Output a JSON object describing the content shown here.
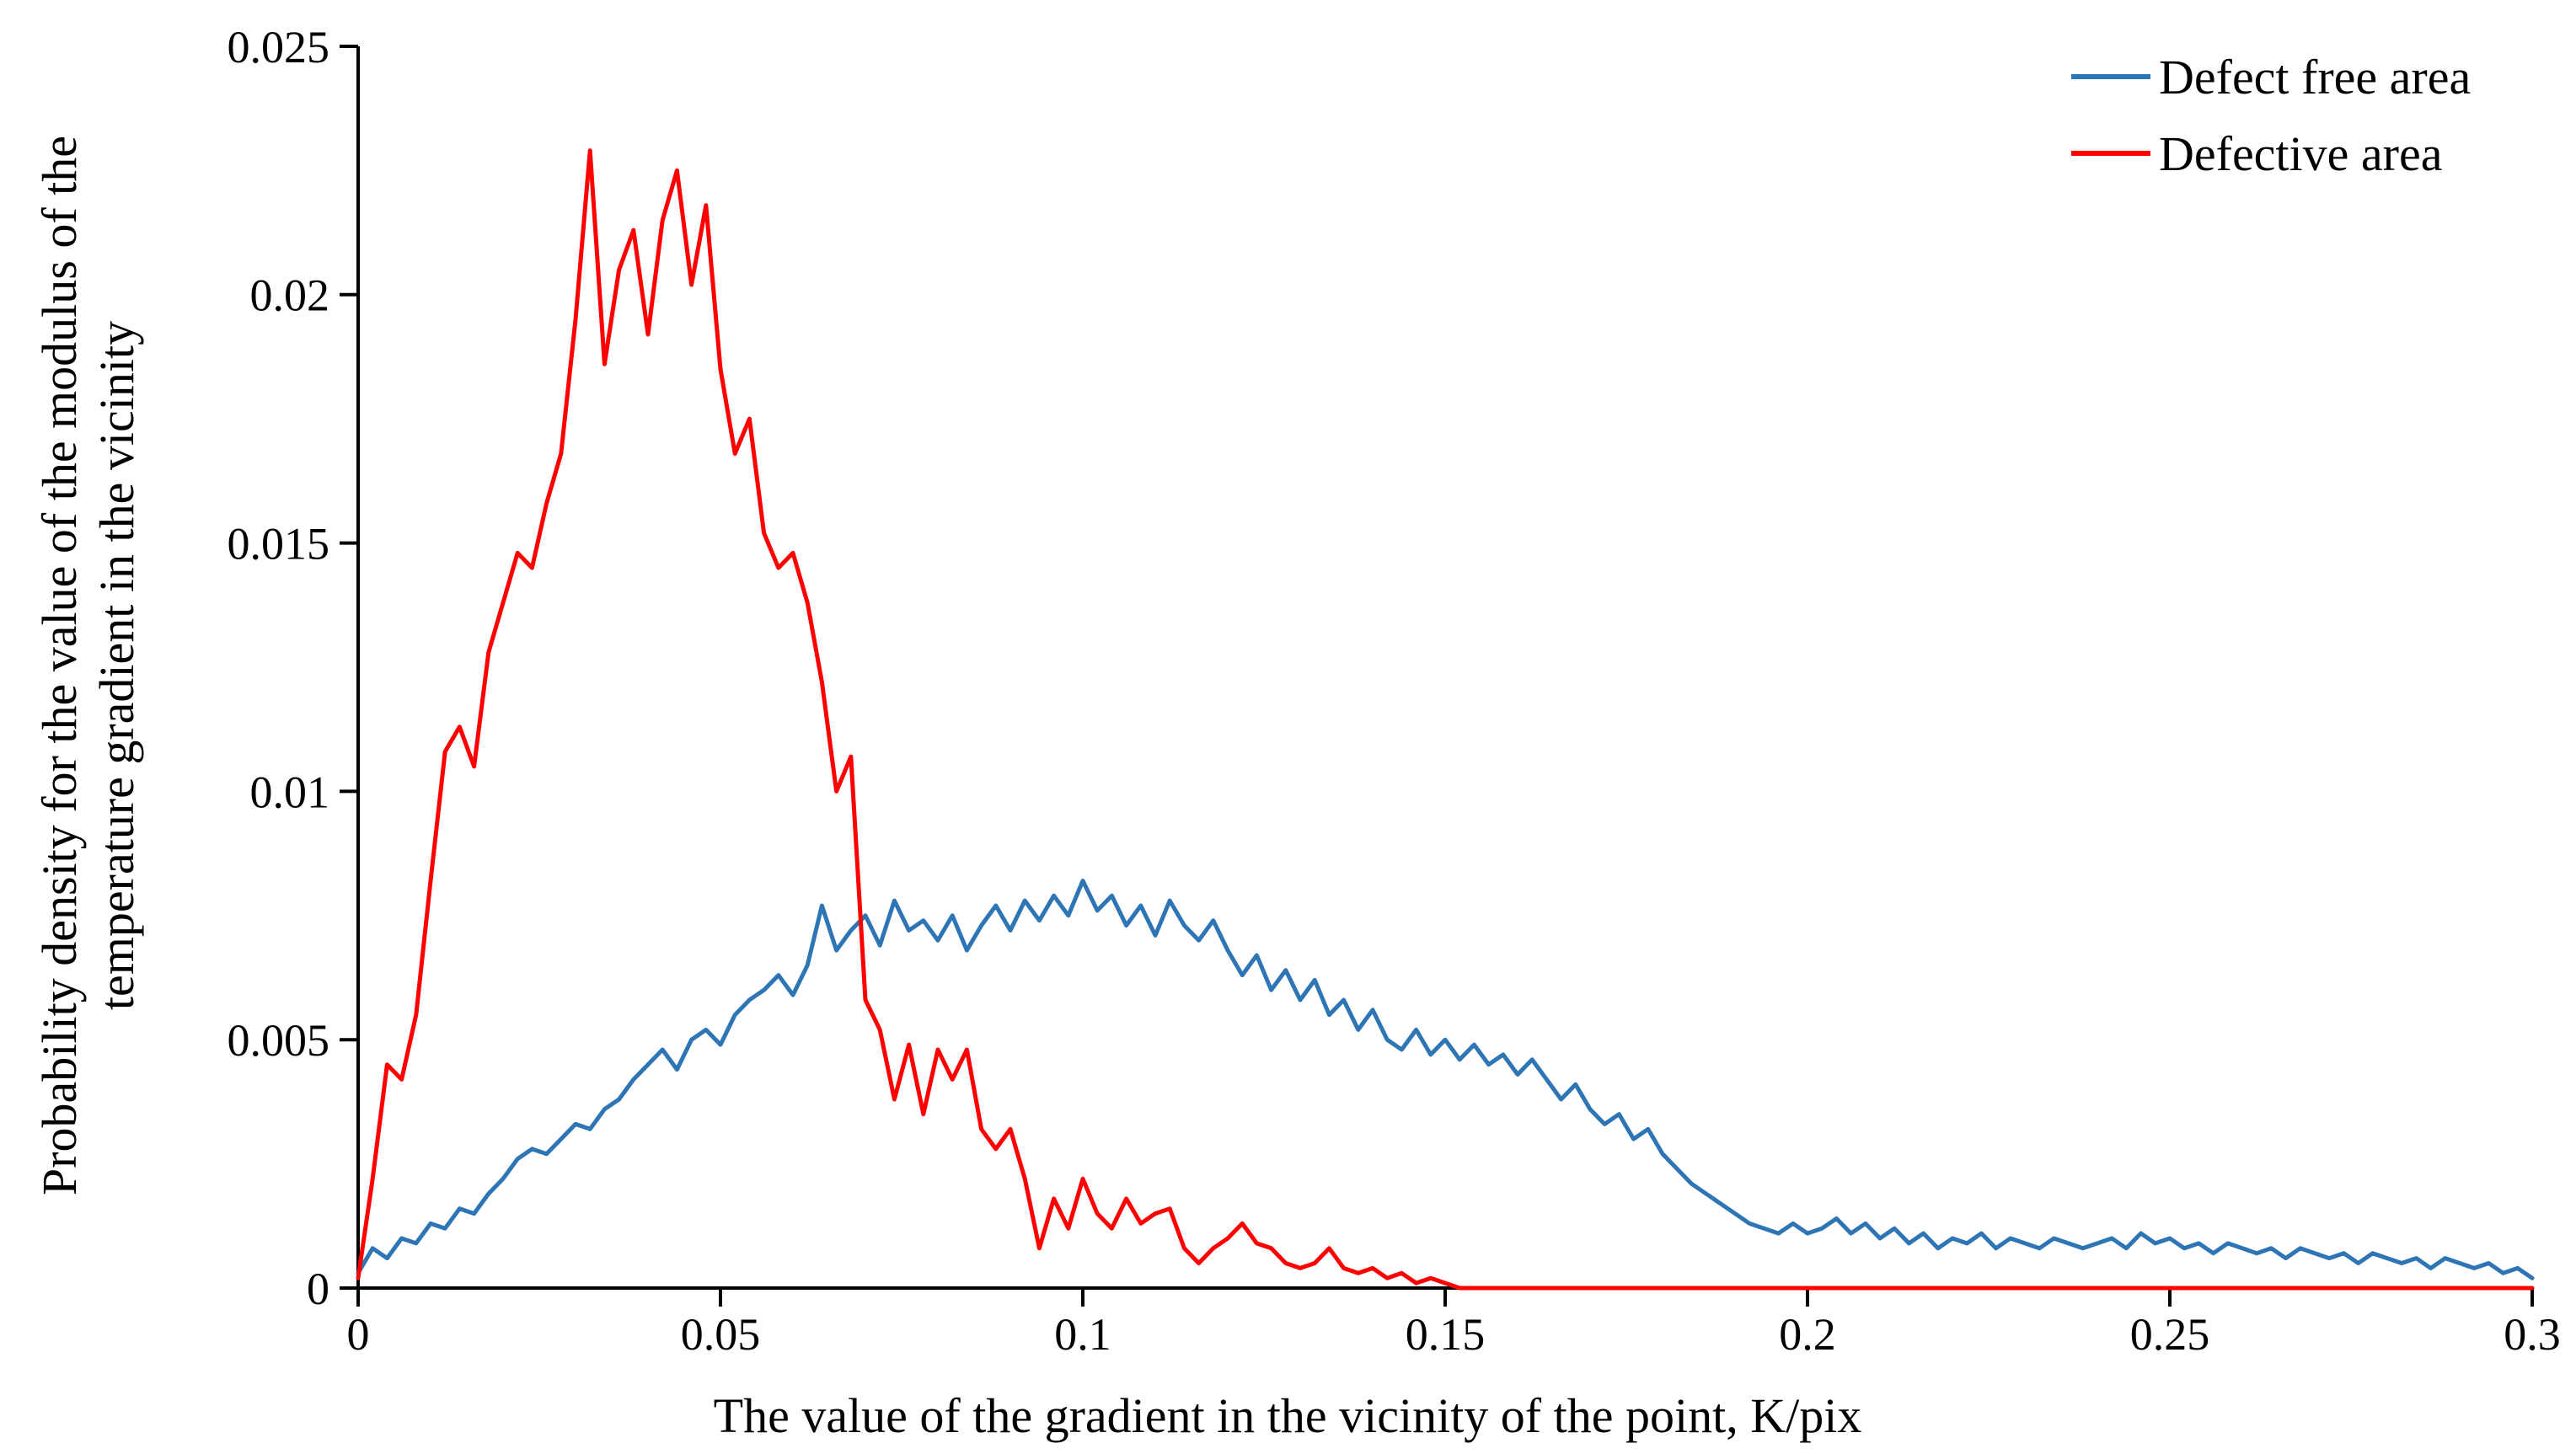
{
  "chart_data": {
    "type": "line",
    "title": "",
    "xlabel": "The value of the gradient in the vicinity of the point, K/pix",
    "ylabel_line1": "Probability density for the value of the modulus of the",
    "ylabel_line2": "temperature gradient in the vicinity",
    "xlim": [
      0,
      0.3
    ],
    "ylim": [
      0,
      0.025
    ],
    "x_ticks": [
      0,
      0.05,
      0.1,
      0.15,
      0.2,
      0.25,
      0.3
    ],
    "x_tick_labels": [
      "0",
      "0.05",
      "0.1",
      "0.15",
      "0.2",
      "0.25",
      "0.3"
    ],
    "y_ticks": [
      0,
      0.005,
      0.01,
      0.015,
      0.02,
      0.025
    ],
    "y_tick_labels": [
      "0",
      "0.005",
      "0.01",
      "0.015",
      "0.02",
      "0.025"
    ],
    "grid": false,
    "legend_position": "top-right",
    "x_start": 0,
    "x_step": 0.002,
    "n_points": 151,
    "series": [
      {
        "name": "Defect free area",
        "color": "#2E75B6",
        "values": [
          0.0003,
          0.0008,
          0.0006,
          0.001,
          0.0009,
          0.0013,
          0.0012,
          0.0016,
          0.0015,
          0.0019,
          0.0022,
          0.0026,
          0.0028,
          0.0027,
          0.003,
          0.0033,
          0.0032,
          0.0036,
          0.0038,
          0.0042,
          0.0045,
          0.0048,
          0.0044,
          0.005,
          0.0052,
          0.0049,
          0.0055,
          0.0058,
          0.006,
          0.0063,
          0.0059,
          0.0065,
          0.0077,
          0.0068,
          0.0072,
          0.0075,
          0.0069,
          0.0078,
          0.0072,
          0.0074,
          0.007,
          0.0075,
          0.0068,
          0.0073,
          0.0077,
          0.0072,
          0.0078,
          0.0074,
          0.0079,
          0.0075,
          0.0082,
          0.0076,
          0.0079,
          0.0073,
          0.0077,
          0.0071,
          0.0078,
          0.0073,
          0.007,
          0.0074,
          0.0068,
          0.0063,
          0.0067,
          0.006,
          0.0064,
          0.0058,
          0.0062,
          0.0055,
          0.0058,
          0.0052,
          0.0056,
          0.005,
          0.0048,
          0.0052,
          0.0047,
          0.005,
          0.0046,
          0.0049,
          0.0045,
          0.0047,
          0.0043,
          0.0046,
          0.0042,
          0.0038,
          0.0041,
          0.0036,
          0.0033,
          0.0035,
          0.003,
          0.0032,
          0.0027,
          0.0024,
          0.0021,
          0.0019,
          0.0017,
          0.0015,
          0.0013,
          0.0012,
          0.0011,
          0.0013,
          0.0011,
          0.0012,
          0.0014,
          0.0011,
          0.0013,
          0.001,
          0.0012,
          0.0009,
          0.0011,
          0.0008,
          0.001,
          0.0009,
          0.0011,
          0.0008,
          0.001,
          0.0009,
          0.0008,
          0.001,
          0.0009,
          0.0008,
          0.0009,
          0.001,
          0.0008,
          0.0011,
          0.0009,
          0.001,
          0.0008,
          0.0009,
          0.0007,
          0.0009,
          0.0008,
          0.0007,
          0.0008,
          0.0006,
          0.0008,
          0.0007,
          0.0006,
          0.0007,
          0.0005,
          0.0007,
          0.0006,
          0.0005,
          0.0006,
          0.0004,
          0.0006,
          0.0005,
          0.0004,
          0.0005,
          0.0003,
          0.0004,
          0.0002
        ]
      },
      {
        "name": "Defective area",
        "color": "#FF0000",
        "values": [
          0.0002,
          0.0022,
          0.0045,
          0.0042,
          0.0055,
          0.0082,
          0.0108,
          0.0113,
          0.0105,
          0.0128,
          0.0138,
          0.0148,
          0.0145,
          0.0158,
          0.0168,
          0.0195,
          0.0229,
          0.0186,
          0.0205,
          0.0213,
          0.0192,
          0.0215,
          0.0225,
          0.0202,
          0.0218,
          0.0185,
          0.0168,
          0.0175,
          0.0152,
          0.0145,
          0.0148,
          0.0138,
          0.0122,
          0.01,
          0.0107,
          0.0058,
          0.0052,
          0.0038,
          0.0049,
          0.0035,
          0.0048,
          0.0042,
          0.0048,
          0.0032,
          0.0028,
          0.0032,
          0.0022,
          0.0008,
          0.0018,
          0.0012,
          0.0022,
          0.0015,
          0.0012,
          0.0018,
          0.0013,
          0.0015,
          0.0016,
          0.0008,
          0.0005,
          0.0008,
          0.001,
          0.0013,
          0.0009,
          0.0008,
          0.0005,
          0.0004,
          0.0005,
          0.0008,
          0.0004,
          0.0003,
          0.0004,
          0.0002,
          0.0003,
          0.0001,
          0.0002,
          0.0001,
          0,
          0,
          0,
          0,
          0,
          0,
          0,
          0,
          0,
          0,
          0,
          0,
          0,
          0,
          0,
          0,
          0,
          0,
          0,
          0,
          0,
          0,
          0,
          0,
          0,
          0,
          0,
          0,
          0,
          0,
          0,
          0,
          0,
          0,
          0,
          0,
          0,
          0,
          0,
          0,
          0,
          0,
          0,
          0,
          0,
          0,
          0,
          0,
          0,
          0,
          0,
          0,
          0,
          0,
          0,
          0,
          0,
          0,
          0,
          0,
          0,
          0,
          0,
          0,
          0,
          0,
          0,
          0,
          0,
          0,
          0,
          0,
          0,
          0,
          0
        ]
      }
    ]
  },
  "legend": {
    "items": [
      {
        "label": "Defect free area"
      },
      {
        "label": "Defective area"
      }
    ]
  }
}
